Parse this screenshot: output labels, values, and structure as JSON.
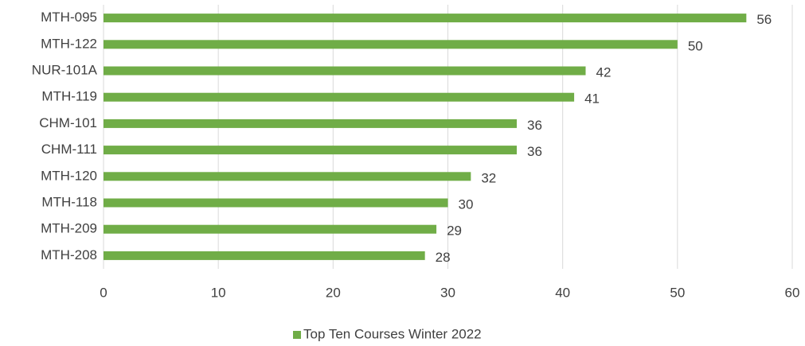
{
  "chart_data": {
    "type": "bar",
    "orientation": "horizontal",
    "categories": [
      "MTH-095",
      "MTH-122",
      "NUR-101A",
      "MTH-119",
      "CHM-101",
      "CHM-111",
      "MTH-120",
      "MTH-118",
      "MTH-209",
      "MTH-208"
    ],
    "series": [
      {
        "name": "Top Ten Courses Winter 2022",
        "color": "#70ad47",
        "values": [
          56,
          50,
          42,
          41,
          36,
          36,
          32,
          30,
          29,
          28
        ]
      }
    ],
    "xlim": [
      0,
      60
    ],
    "xticks": [
      0,
      10,
      20,
      30,
      40,
      50,
      60
    ],
    "grid": true,
    "legend": "bottom",
    "data_labels": true
  }
}
